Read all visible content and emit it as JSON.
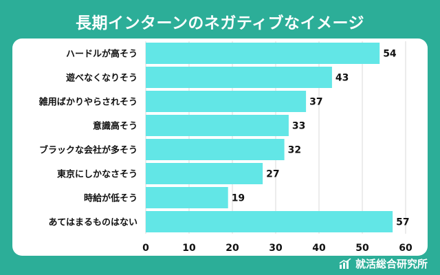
{
  "title": "長期インターンのネガティブなイメージ",
  "footer": {
    "brand": "就活総合研究所",
    "icon": "bar-chart-logo-icon"
  },
  "colors": {
    "background": "#2cae98",
    "bar": "#62e6e6",
    "grid": "#d9d9d9",
    "text": "#111111"
  },
  "chart_data": {
    "type": "bar",
    "orientation": "horizontal",
    "title": "長期インターンのネガティブなイメージ",
    "categories": [
      "ハードルが高そう",
      "遊べなくなりそう",
      "雑用ばかりやらされそう",
      "意識高そう",
      "ブラックな会社が多そう",
      "東京にしかなさそう",
      "時給が低そう",
      "あてはまるものはない"
    ],
    "values": [
      54,
      43,
      37,
      33,
      32,
      27,
      19,
      57
    ],
    "xlim": [
      0,
      60
    ],
    "xticks": [
      0,
      10,
      20,
      30,
      40,
      50,
      60
    ],
    "grid": true,
    "data_labels": true
  }
}
